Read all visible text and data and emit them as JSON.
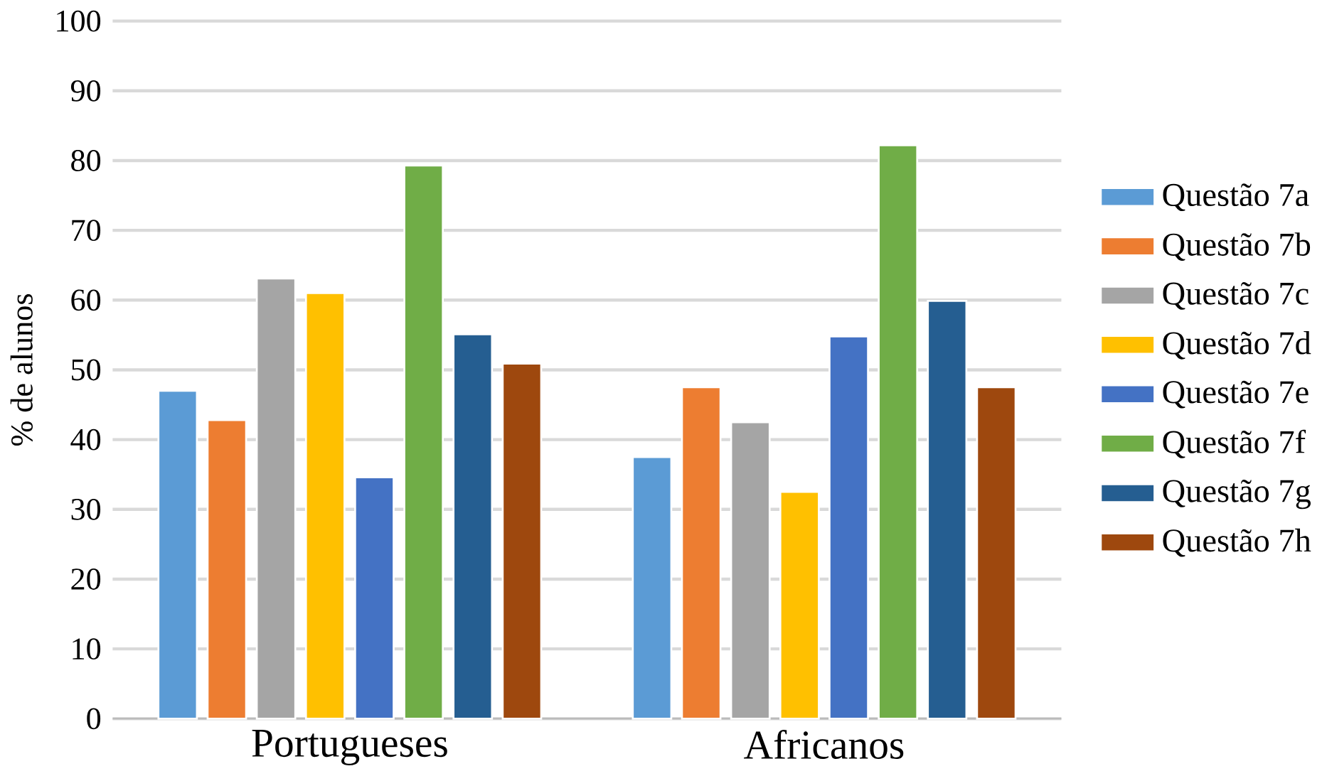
{
  "chart_data": {
    "type": "bar",
    "ylabel": "% de alunos",
    "categories": [
      "Portugueses",
      "Africanos"
    ],
    "series": [
      {
        "name": "Questão 7a",
        "color": "#5b9bd5",
        "values": [
          47,
          37.5
        ]
      },
      {
        "name": "Questão 7b",
        "color": "#ed7d31",
        "values": [
          42.8,
          47.5
        ]
      },
      {
        "name": "Questão 7c",
        "color": "#a5a5a5",
        "values": [
          63.1,
          42.5
        ]
      },
      {
        "name": "Questão 7d",
        "color": "#ffc000",
        "values": [
          61,
          32.5
        ]
      },
      {
        "name": "Questão 7e",
        "color": "#4472c4",
        "values": [
          34.6,
          54.8
        ]
      },
      {
        "name": "Questão 7f",
        "color": "#70ad47",
        "values": [
          79.3,
          82.2
        ]
      },
      {
        "name": "Questão 7g",
        "color": "#255e91",
        "values": [
          55.1,
          59.9
        ]
      },
      {
        "name": "Questão 7h",
        "color": "#9e480e",
        "values": [
          50.9,
          47.5
        ]
      }
    ],
    "ylim": [
      0,
      100
    ],
    "yticks": [
      0,
      10,
      20,
      30,
      40,
      50,
      60,
      70,
      80,
      90,
      100
    ],
    "grid": "y",
    "legend": "right"
  }
}
